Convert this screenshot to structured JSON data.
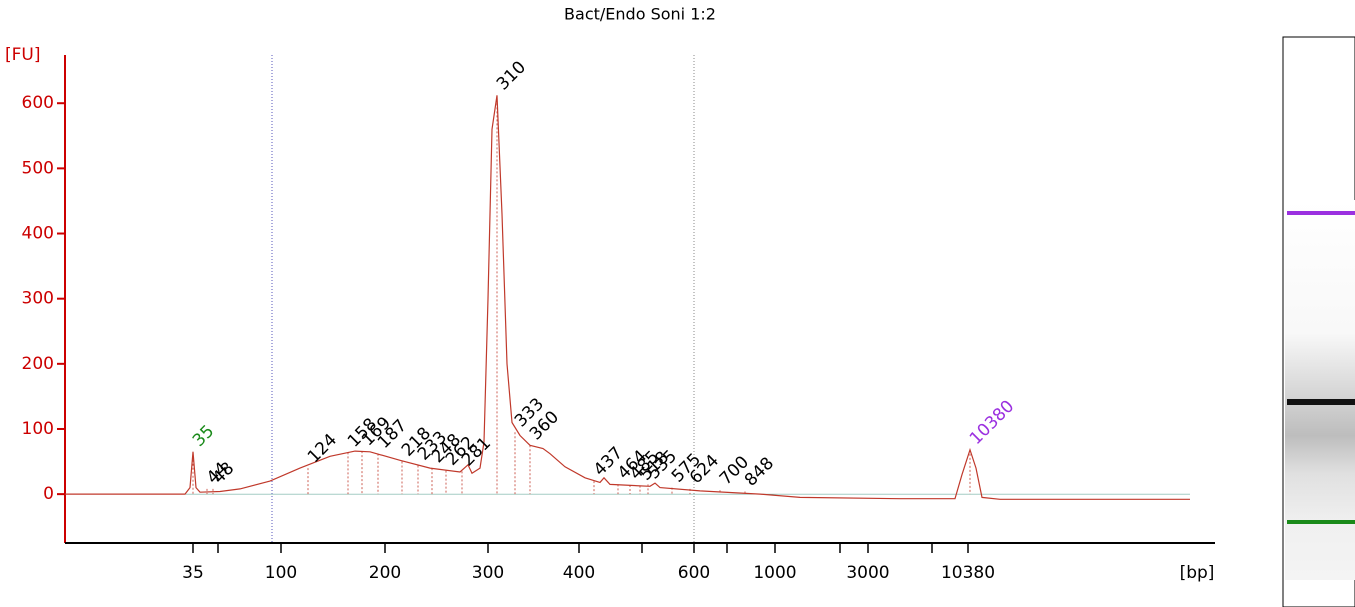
{
  "chart_data": {
    "type": "line",
    "title": "Bact/Endo Soni 1:2",
    "y_label": "[FU]",
    "x_label": "[bp]",
    "color": "#c0392b",
    "axis_color": "#cc0000",
    "label_color": "#000000",
    "xlim": [
      15,
      72.5
    ],
    "ylim": [
      -75,
      674
    ],
    "yticks": [
      0,
      100,
      200,
      300,
      400,
      500,
      600
    ],
    "xticks": [
      {
        "value": 21.4,
        "label": "35"
      },
      {
        "value": 25.8,
        "label": "100"
      },
      {
        "value": 31,
        "label": "200"
      },
      {
        "value": 36.15,
        "label": "300"
      },
      {
        "value": 40.7,
        "label": "400"
      },
      {
        "value": 46.45,
        "label": "600"
      },
      {
        "value": 50.5,
        "label": "1000"
      },
      {
        "value": 55.15,
        "label": "3000"
      },
      {
        "value": 60.15,
        "label": "10380"
      }
    ],
    "xminorticks": [
      22.65,
      43.85,
      48.1,
      53.75,
      58.35
    ],
    "region": [
      25.35,
      46.45
    ],
    "x": [
      15,
      21,
      21.25,
      21.4,
      21.55,
      21.75,
      22.75,
      23.75,
      25.25,
      26.75,
      28.25,
      29.5,
      30.25,
      31.75,
      33.25,
      34.75,
      35.15,
      35.35,
      35.75,
      35.95,
      36.15,
      36.35,
      36.6,
      36.85,
      37.1,
      37.35,
      37.75,
      38.25,
      38.9,
      39.25,
      40,
      41,
      41.75,
      41.95,
      42.25,
      44.25,
      44.5,
      44.75,
      46.75,
      49.75,
      51.75,
      56.75,
      59.5,
      59.85,
      60.25,
      60.55,
      60.85,
      61.75,
      71.25
    ],
    "values": [
      0,
      0,
      10,
      65,
      10,
      3,
      4,
      8,
      20,
      40,
      58,
      66,
      65,
      52,
      40,
      34,
      45,
      32,
      40,
      80,
      300,
      560,
      612,
      430,
      200,
      110,
      90,
      75,
      70,
      62,
      42,
      25,
      18,
      25,
      15,
      12,
      17,
      10,
      5,
      0,
      -5,
      -7,
      -7,
      30,
      68,
      40,
      -5,
      -8,
      -8
    ],
    "peaks": [
      {
        "label": 35,
        "x": 21.4,
        "y": 65,
        "color": "#1a8a1a"
      },
      {
        "label": 44,
        "x": 22.1,
        "y": 8
      },
      {
        "label": 48,
        "x": 22.4,
        "y": 8
      },
      {
        "label": 124,
        "x": 27.15,
        "y": 40
      },
      {
        "label": 158,
        "x": 29.15,
        "y": 64
      },
      {
        "label": 169,
        "x": 29.85,
        "y": 66
      },
      {
        "label": 187,
        "x": 30.65,
        "y": 62
      },
      {
        "label": 218,
        "x": 31.85,
        "y": 50
      },
      {
        "label": 233,
        "x": 32.65,
        "y": 44
      },
      {
        "label": 248,
        "x": 33.35,
        "y": 40
      },
      {
        "label": 262,
        "x": 34.05,
        "y": 36
      },
      {
        "label": 281,
        "x": 34.85,
        "y": 35
      },
      {
        "label": 310,
        "x": 36.6,
        "y": 612
      },
      {
        "label": 333,
        "x": 37.5,
        "y": 95
      },
      {
        "label": 360,
        "x": 38.25,
        "y": 75
      },
      {
        "label": 437,
        "x": 41.45,
        "y": 20
      },
      {
        "label": 464,
        "x": 42.65,
        "y": 15
      },
      {
        "label": 485,
        "x": 43.25,
        "y": 14
      },
      {
        "label": 518,
        "x": 43.75,
        "y": 13
      },
      {
        "label": 535,
        "x": 44.15,
        "y": 15
      },
      {
        "label": 575,
        "x": 45.35,
        "y": 10
      },
      {
        "label": 624,
        "x": 46.25,
        "y": 8
      },
      {
        "label": 700,
        "x": 47.75,
        "y": 6
      },
      {
        "label": 848,
        "x": 49,
        "y": 4
      },
      {
        "label": 10380,
        "x": 60.25,
        "y": 68,
        "color": "#9b30e0"
      }
    ]
  }
}
